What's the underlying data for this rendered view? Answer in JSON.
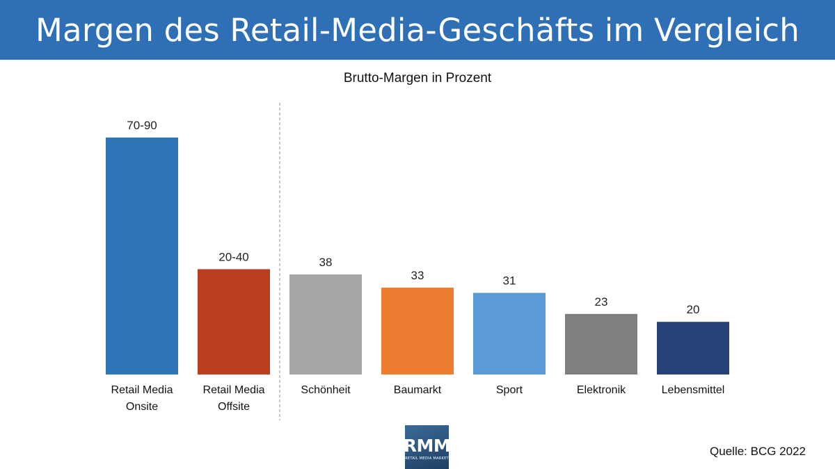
{
  "header": {
    "title": "Margen des Retail-Media-Geschäfts im Vergleich"
  },
  "chart_data": {
    "type": "bar",
    "title": "Brutto-Margen in Prozent",
    "xlabel": "",
    "ylabel": "",
    "ylim": [
      0,
      95
    ],
    "grid": false,
    "categories": [
      [
        "Retail Media",
        "Onsite"
      ],
      [
        "Retail Media",
        "Offsite"
      ],
      [
        "Schönheit"
      ],
      [
        "Baumarkt"
      ],
      [
        "Sport"
      ],
      [
        "Elektronik"
      ],
      [
        "Lebensmittel"
      ]
    ],
    "values": [
      90,
      40,
      38,
      33,
      31,
      23,
      20
    ],
    "data_labels": [
      "70-90",
      "20-40",
      "38",
      "33",
      "31",
      "23",
      "20"
    ],
    "colors": [
      "#2e74b8",
      "#bb3e1f",
      "#a6a6a6",
      "#ed7d31",
      "#5b9bd5",
      "#7f7f7f",
      "#264478"
    ],
    "separator_after_index": 1
  },
  "logo": {
    "main": "RMM",
    "sub": "RETAIL MEDIA MARKET"
  },
  "footer": {
    "source": "Quelle: BCG 2022"
  }
}
